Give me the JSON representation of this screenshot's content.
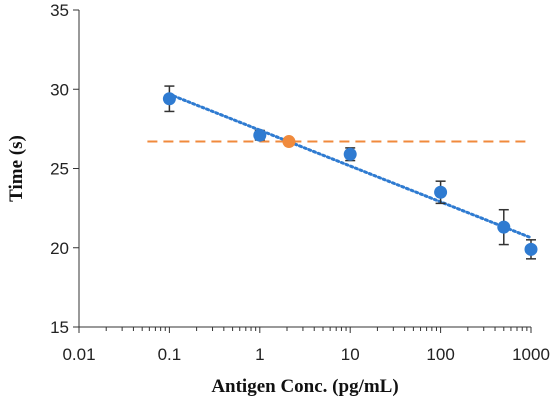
{
  "chart_data": {
    "type": "scatter",
    "xlabel": "Antigen Conc. (pg/mL)",
    "ylabel": "Time (s)",
    "x_scale": "log",
    "xlim": [
      0.01,
      1000
    ],
    "ylim": [
      15,
      35
    ],
    "x_ticks": [
      "0.01",
      "0.1",
      "1",
      "10",
      "100",
      "1000"
    ],
    "y_ticks": [
      "15",
      "20",
      "25",
      "30",
      "35"
    ],
    "grid": false,
    "series": [
      {
        "points": [
          {
            "x": 0.1,
            "y": 29.4,
            "err": 0.8
          },
          {
            "x": 1,
            "y": 27.1,
            "err": 0.3
          },
          {
            "x": 10,
            "y": 25.9,
            "err": 0.4
          },
          {
            "x": 100,
            "y": 23.5,
            "err": 0.7
          },
          {
            "x": 500,
            "y": 21.3,
            "err": 1.1
          },
          {
            "x": 1000,
            "y": 19.9,
            "err": 0.6
          }
        ],
        "color": "#2f7bd1",
        "trendline": "dotted-log-linear"
      },
      {
        "points": [
          {
            "x": 2.1,
            "y": 26.7
          }
        ],
        "color": "#f08a3c"
      }
    ],
    "threshold_line": {
      "y": 26.7,
      "color": "#f08a3c",
      "style": "dashed"
    }
  }
}
